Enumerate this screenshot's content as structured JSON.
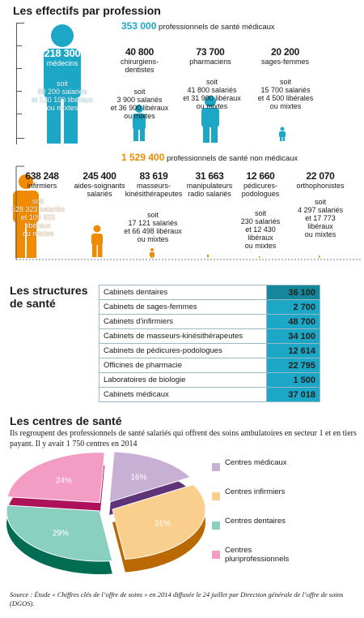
{
  "section1": {
    "title": "Les effectifs par profession",
    "medical_total": "353 000",
    "medical_label": "professionnels de santé médicaux",
    "medical": [
      {
        "num": "218 300",
        "label": "médecins",
        "soit": "soit\n88 200 salariés\net 130 100 libéraux\nou mixtes"
      },
      {
        "num": "40 800",
        "label": "chirurgiens-\ndentistes",
        "soit": "soit\n3 900 salariés\net 36 900 libéraux\nou mixtes"
      },
      {
        "num": "73 700",
        "label": "pharmaciens",
        "soit": "soit\n41 800 salariés\net 31 900 libéraux\nou mixtes"
      },
      {
        "num": "20 200",
        "label": "sages-femmes",
        "soit": "soit\n15 700 salariés\net 4 500 libérales\nou mixtes"
      }
    ],
    "nonmedical_total": "1 529 400",
    "nonmedical_label": "professionnels de santé non médicaux",
    "nonmedical": [
      {
        "num": "638 248",
        "label": "infirmiers",
        "soit": "soit\n528 323 salariés\net 109 925\nlibéraux\nou mixtes"
      },
      {
        "num": "245 400",
        "label": "aides-soignants\nsalariés",
        "soit": ""
      },
      {
        "num": "83 619",
        "label": "masseurs-\nkinésithérapeutes",
        "soit": "soit\n17 121 salariés\net 66 498 libéraux\nou mixtes"
      },
      {
        "num": "31 663",
        "label": "manipulateurs\nradio salariés",
        "soit": ""
      },
      {
        "num": "12 660",
        "label": "pédicures-\npodologues",
        "soit": "soit\n230 salariés\net 12 430\nlibéraux\nou mixtes"
      },
      {
        "num": "22 070",
        "label": "orthophonistes",
        "soit": "soit\n4 297 salariés\net 17 773\nlibéraux\nou mixtes"
      }
    ]
  },
  "section2": {
    "title": "Les structures\nde santé",
    "rows": [
      {
        "name": "Cabinets dentaires",
        "value": "36 100"
      },
      {
        "name": "Cabinets de sages-femmes",
        "value": "2 700"
      },
      {
        "name": "Cabinets d’infirmiers",
        "value": "48 700"
      },
      {
        "name": "Cabinets de masseurs-kinésithérapeutes",
        "value": "34 100"
      },
      {
        "name": "Cabinets de pédicures-podologues",
        "value": "12 614"
      },
      {
        "name": "Officines de pharmacie",
        "value": "22 795"
      },
      {
        "name": "Laboratoires de biologie",
        "value": "1 500"
      },
      {
        "name": "Cabinets médicaux",
        "value": "37 018"
      }
    ]
  },
  "section3": {
    "title": "Les centres de santé",
    "description": "Ils regroupent des professionnels de santé salariés qui offrent des soins ambulatoires en secteur 1 et en tiers payant. Il y avait 1 750 centres en 2014"
  },
  "source": "Source : Étude « Chiffres clés de l’offre de soins » en 2014 diffusée le 24 juillet par Direction générale de l’offre de soins (DGOS).",
  "colors": {
    "blue": "#1da7c6",
    "orange": "#f08a00",
    "teal_dark": "#14879c"
  },
  "chart_data": [
    {
      "type": "bar",
      "title": "",
      "categories": [
        "médecins",
        "chirurgiens-dentistes",
        "pharmaciens",
        "sages-femmes"
      ],
      "values": [
        218300,
        40800,
        73700,
        20200
      ]
    },
    {
      "type": "bar",
      "title": "",
      "categories": [
        "infirmiers",
        "aides-soignants salariés",
        "masseurs-kinésithérapeutes",
        "manipulateurs radio salariés",
        "pédicures-podologues",
        "orthophonistes"
      ],
      "values": [
        638248,
        245400,
        83619,
        31663,
        12660,
        22070
      ]
    },
    {
      "type": "pie",
      "title": "",
      "categories": [
        "Centres médicaux",
        "Centres infirmiers",
        "Centres dentaires",
        "Centres pluriprofessionnels"
      ],
      "values": [
        16,
        31,
        29,
        24
      ],
      "labels": [
        "16%",
        "31%",
        "29%",
        "24%"
      ],
      "colors": [
        "#9b6fb3",
        "#f5a52f",
        "#2aa98f",
        "#e94d95"
      ]
    }
  ]
}
